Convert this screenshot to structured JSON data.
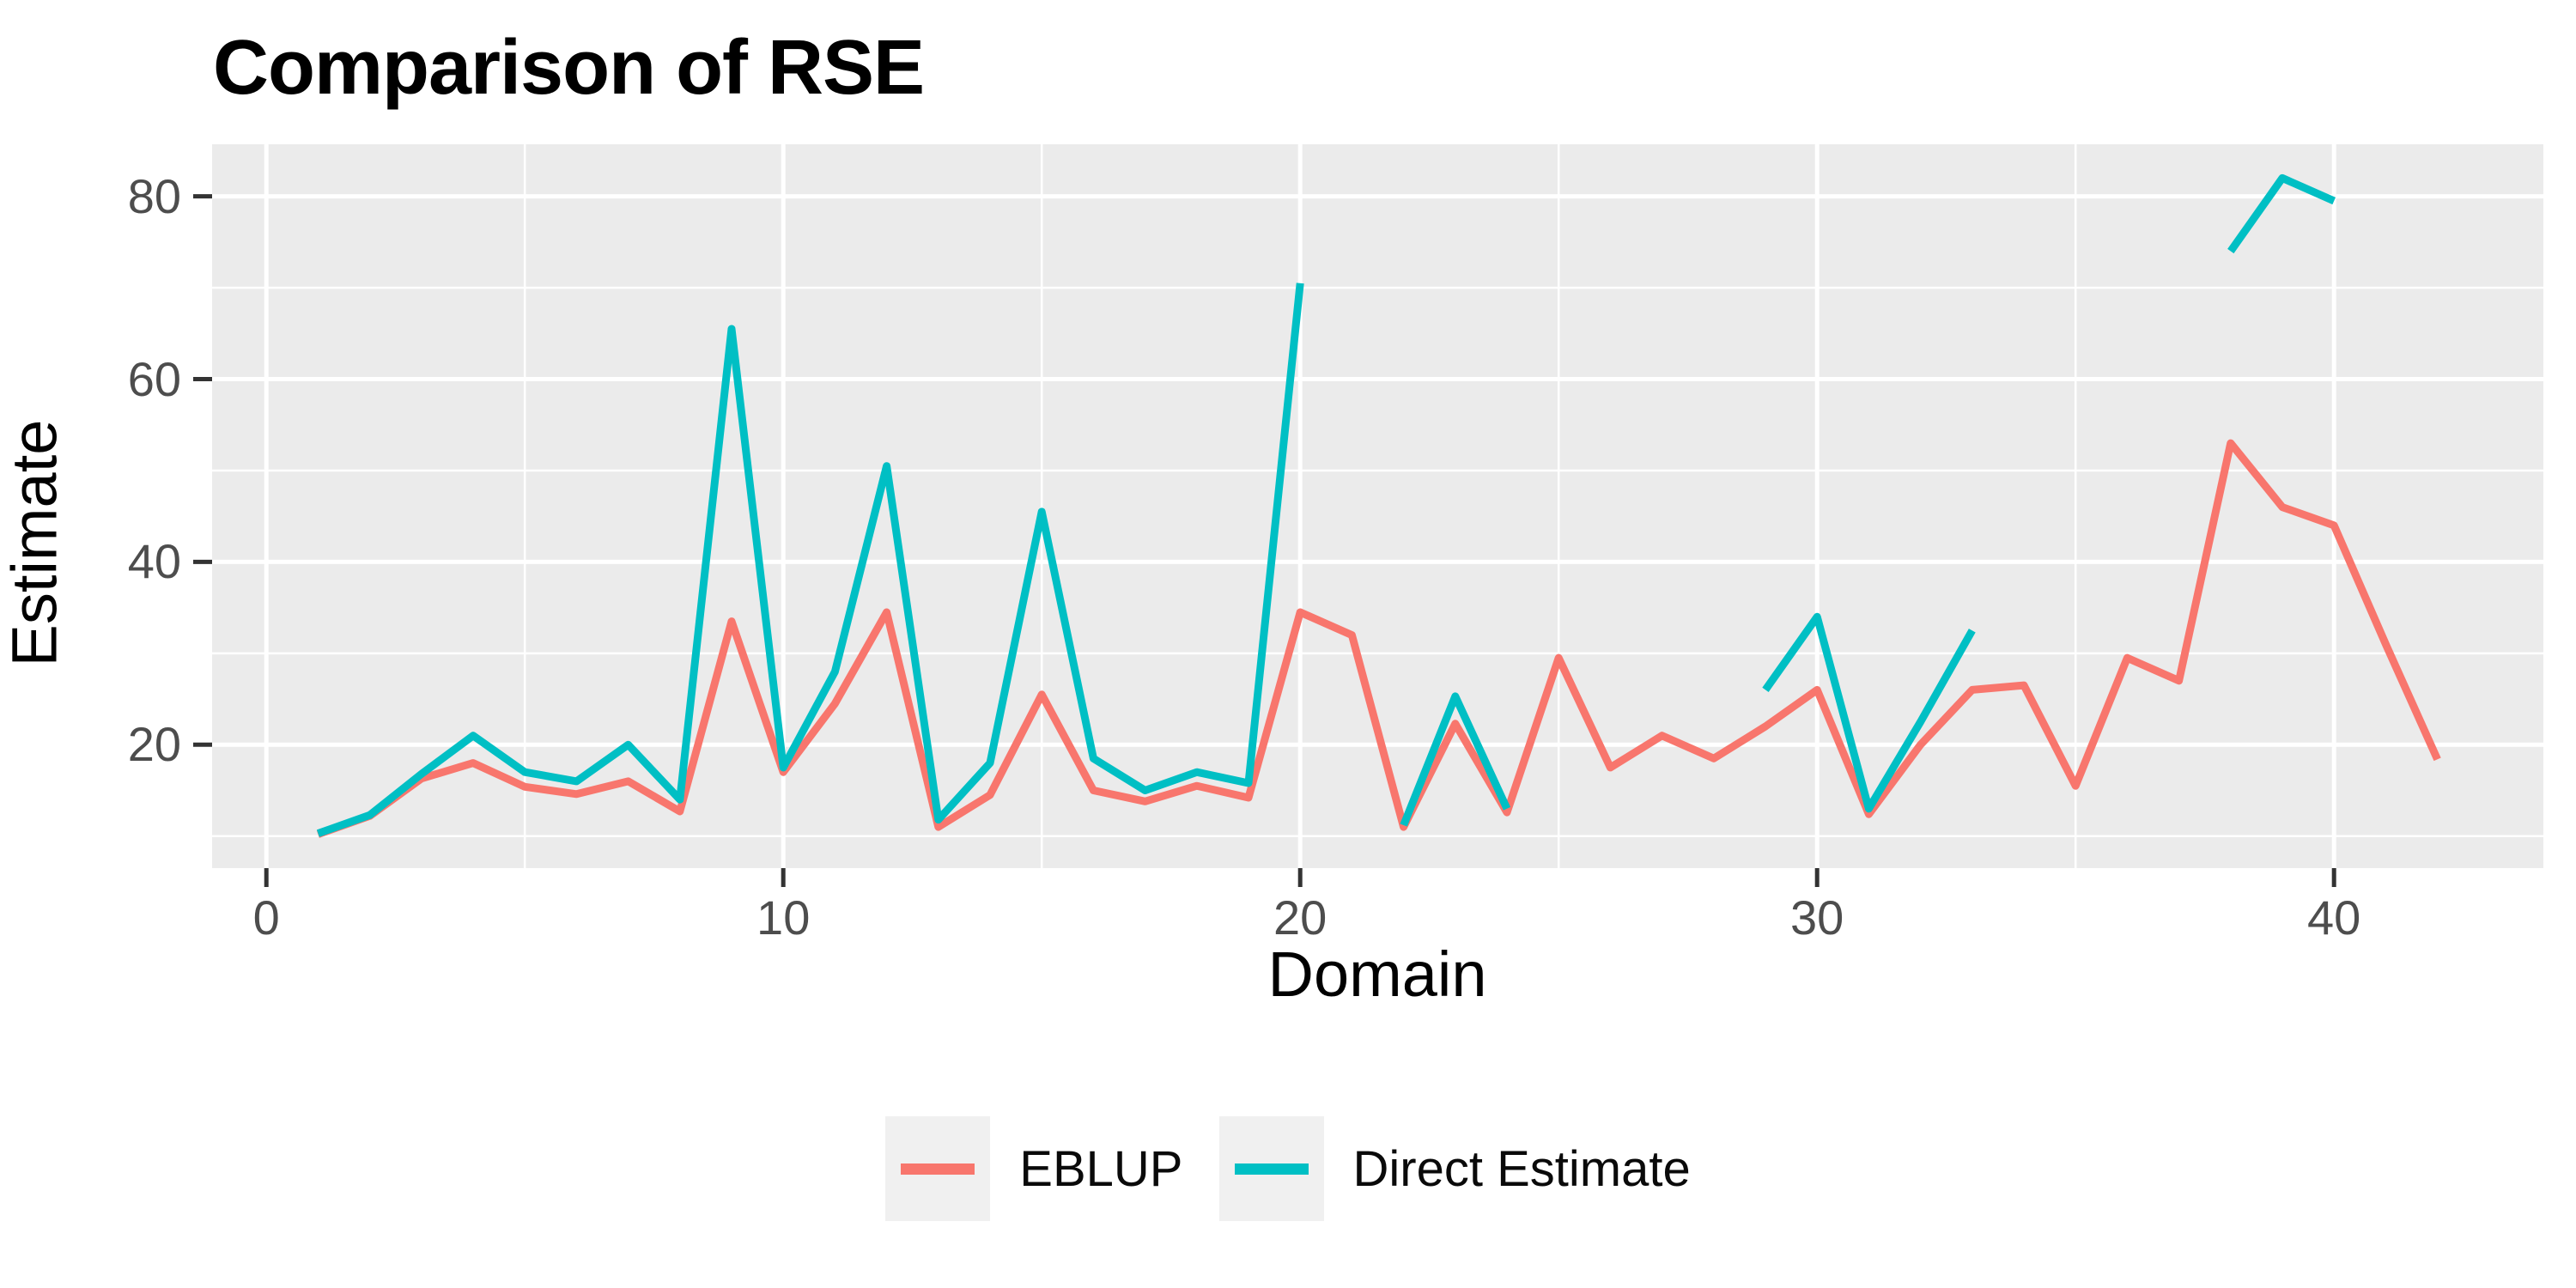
{
  "title": "Comparison of RSE",
  "chart_data": {
    "type": "line",
    "title": "Comparison of RSE",
    "xlabel": "Domain",
    "ylabel": "Estimate",
    "x": [
      1,
      2,
      3,
      4,
      5,
      6,
      7,
      8,
      9,
      10,
      11,
      12,
      13,
      14,
      15,
      16,
      17,
      18,
      19,
      20,
      21,
      22,
      23,
      24,
      25,
      26,
      27,
      28,
      29,
      30,
      31,
      32,
      33,
      34,
      35,
      36,
      37,
      38,
      39,
      40,
      41,
      42
    ],
    "series": [
      {
        "name": "EBLUP",
        "color": "#F8766D",
        "values": [
          10.2,
          12.2,
          16.3,
          18,
          15.4,
          14.6,
          16,
          12.7,
          33.5,
          17,
          24.5,
          34.5,
          11,
          14.5,
          25.5,
          15,
          13.8,
          15.5,
          14.2,
          34.5,
          32,
          11,
          22.3,
          12.6,
          29.5,
          17.5,
          21,
          18.5,
          22,
          26,
          12.4,
          20,
          26,
          26.5,
          15.5,
          29.5,
          27,
          53,
          46,
          44,
          31,
          18.4
        ]
      },
      {
        "name": "Direct Estimate",
        "color": "#00BFC4",
        "values": [
          10.3,
          12.3,
          16.8,
          21,
          17,
          16,
          20,
          14,
          65.5,
          17.5,
          28,
          50.5,
          11.8,
          18,
          45.5,
          18.5,
          15,
          17,
          15.8,
          70.5,
          null,
          11.2,
          25.3,
          13,
          null,
          null,
          null,
          null,
          26,
          34,
          13,
          22.5,
          32.5,
          null,
          null,
          null,
          null,
          74,
          82,
          79.5,
          null,
          null
        ]
      }
    ],
    "xlim": [
      -1.05,
      44.05
    ],
    "ylim": [
      6.5,
      85.7
    ],
    "x_ticks": [
      0,
      10,
      20,
      30,
      40
    ],
    "x_minor_ticks": [
      5,
      15,
      25,
      35
    ],
    "y_ticks": [
      20,
      40,
      60,
      80
    ],
    "y_minor_ticks": [
      10,
      30,
      50,
      70
    ],
    "grid": "on",
    "legend_position": "bottom"
  },
  "legend": {
    "items": [
      {
        "label": "EBLUP",
        "color": "#F8766D"
      },
      {
        "label": "Direct Estimate",
        "color": "#00BFC4"
      }
    ]
  },
  "colors": {
    "background": "#FFFFFF",
    "panel_bg": "#EBEBEB",
    "grid": "#FFFFFF",
    "tick_label": "#4D4D4D",
    "tick_mark": "#333333",
    "axis_title": "#000000",
    "title": "#000000",
    "legend_key_bg": "#F0F0F0",
    "series_eblup": "#F8766D",
    "series_direct": "#00BFC4"
  }
}
